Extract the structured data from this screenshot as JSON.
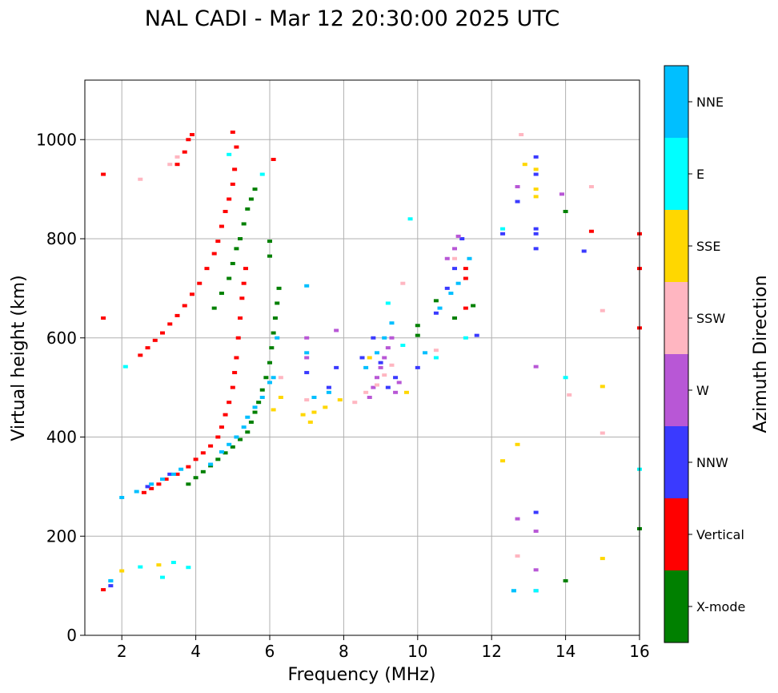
{
  "chart_data": {
    "type": "scatter",
    "title": "NAL CADI - Mar 12 20:30:00 2025 UTC",
    "xlabel": "Frequency (MHz)",
    "ylabel": "Virtual height (km)",
    "xlim": [
      1,
      16
    ],
    "ylim": [
      0,
      1120
    ],
    "xticks": [
      2,
      4,
      6,
      8,
      10,
      12,
      14,
      16
    ],
    "yticks": [
      0,
      200,
      400,
      600,
      800,
      1000
    ],
    "grid": true,
    "colorbar": {
      "label": "Azimuth Direction",
      "categories": [
        {
          "name": "X-mode",
          "color": "#008000"
        },
        {
          "name": "Vertical",
          "color": "#ff0000"
        },
        {
          "name": "NNW",
          "color": "#3a3aff"
        },
        {
          "name": "W",
          "color": "#b857d6"
        },
        {
          "name": "SSW",
          "color": "#ffb6c1"
        },
        {
          "name": "SSE",
          "color": "#ffd700"
        },
        {
          "name": "E",
          "color": "#00ffff"
        },
        {
          "name": "NNE",
          "color": "#00bfff"
        }
      ]
    },
    "series": [
      {
        "name": "Vertical",
        "color": "#ff0000",
        "points": [
          [
            1.5,
            92
          ],
          [
            2.6,
            288
          ],
          [
            2.8,
            296
          ],
          [
            3.0,
            305
          ],
          [
            3.2,
            315
          ],
          [
            3.5,
            325
          ],
          [
            3.8,
            340
          ],
          [
            4.0,
            355
          ],
          [
            4.2,
            368
          ],
          [
            4.4,
            382
          ],
          [
            4.6,
            400
          ],
          [
            4.7,
            420
          ],
          [
            4.8,
            445
          ],
          [
            4.9,
            470
          ],
          [
            5.0,
            500
          ],
          [
            5.05,
            530
          ],
          [
            5.1,
            560
          ],
          [
            5.15,
            600
          ],
          [
            5.2,
            640
          ],
          [
            5.25,
            680
          ],
          [
            5.3,
            710
          ],
          [
            5.35,
            740
          ],
          [
            2.5,
            565
          ],
          [
            2.7,
            580
          ],
          [
            2.9,
            595
          ],
          [
            3.1,
            610
          ],
          [
            3.3,
            628
          ],
          [
            3.5,
            645
          ],
          [
            3.7,
            665
          ],
          [
            3.9,
            688
          ],
          [
            4.1,
            710
          ],
          [
            4.3,
            740
          ],
          [
            4.5,
            770
          ],
          [
            4.6,
            795
          ],
          [
            4.7,
            825
          ],
          [
            4.8,
            855
          ],
          [
            4.9,
            880
          ],
          [
            5.0,
            910
          ],
          [
            5.05,
            940
          ],
          [
            5.1,
            985
          ],
          [
            3.5,
            950
          ],
          [
            3.7,
            975
          ],
          [
            3.8,
            1000
          ],
          [
            3.9,
            1010
          ],
          [
            1.5,
            640
          ],
          [
            1.5,
            930
          ],
          [
            11.3,
            660
          ],
          [
            11.3,
            720
          ],
          [
            11.3,
            740
          ],
          [
            14.7,
            815
          ],
          [
            16,
            740
          ],
          [
            16,
            620
          ],
          [
            16,
            810
          ],
          [
            6.1,
            960
          ],
          [
            5.0,
            1015
          ]
        ]
      },
      {
        "name": "X-mode",
        "color": "#008000",
        "points": [
          [
            3.8,
            305
          ],
          [
            4.0,
            318
          ],
          [
            4.2,
            330
          ],
          [
            4.4,
            342
          ],
          [
            4.6,
            355
          ],
          [
            4.8,
            368
          ],
          [
            5.0,
            380
          ],
          [
            5.2,
            395
          ],
          [
            5.4,
            410
          ],
          [
            5.5,
            430
          ],
          [
            5.6,
            450
          ],
          [
            5.7,
            470
          ],
          [
            5.8,
            495
          ],
          [
            5.9,
            520
          ],
          [
            6.0,
            550
          ],
          [
            6.05,
            580
          ],
          [
            6.1,
            610
          ],
          [
            6.15,
            640
          ],
          [
            6.2,
            670
          ],
          [
            6.25,
            700
          ],
          [
            4.5,
            660
          ],
          [
            4.7,
            690
          ],
          [
            4.9,
            720
          ],
          [
            5.0,
            750
          ],
          [
            5.1,
            780
          ],
          [
            5.2,
            800
          ],
          [
            5.3,
            830
          ],
          [
            5.4,
            860
          ],
          [
            5.5,
            880
          ],
          [
            5.6,
            900
          ],
          [
            6.0,
            795
          ],
          [
            6.0,
            765
          ],
          [
            10.0,
            605
          ],
          [
            10.0,
            625
          ],
          [
            10.5,
            675
          ],
          [
            11.0,
            640
          ],
          [
            11.5,
            665
          ],
          [
            14.0,
            110
          ],
          [
            14.0,
            855
          ],
          [
            16,
            215
          ]
        ]
      },
      {
        "name": "NNW",
        "color": "#3a3aff",
        "points": [
          [
            1.7,
            100
          ],
          [
            2.7,
            300
          ],
          [
            3.3,
            325
          ],
          [
            7.0,
            530
          ],
          [
            7.6,
            500
          ],
          [
            7.8,
            540
          ],
          [
            8.5,
            560
          ],
          [
            8.8,
            600
          ],
          [
            9.0,
            550
          ],
          [
            9.2,
            500
          ],
          [
            9.4,
            520
          ],
          [
            10.0,
            540
          ],
          [
            10.5,
            650
          ],
          [
            10.8,
            700
          ],
          [
            11.0,
            740
          ],
          [
            11.2,
            800
          ],
          [
            11.6,
            605
          ],
          [
            12.3,
            810
          ],
          [
            12.7,
            875
          ],
          [
            13.2,
            780
          ],
          [
            13.2,
            810
          ],
          [
            13.2,
            820
          ],
          [
            13.2,
            930
          ],
          [
            13.2,
            965
          ],
          [
            13.2,
            248
          ],
          [
            13.2,
            90
          ],
          [
            14.5,
            775
          ]
        ]
      },
      {
        "name": "W",
        "color": "#b857d6",
        "points": [
          [
            7.0,
            600
          ],
          [
            7.0,
            560
          ],
          [
            7.8,
            615
          ],
          [
            8.7,
            480
          ],
          [
            8.8,
            500
          ],
          [
            8.9,
            520
          ],
          [
            9.0,
            540
          ],
          [
            9.1,
            560
          ],
          [
            9.2,
            580
          ],
          [
            9.3,
            600
          ],
          [
            9.4,
            490
          ],
          [
            9.5,
            510
          ],
          [
            10.8,
            760
          ],
          [
            11.0,
            780
          ],
          [
            11.1,
            805
          ],
          [
            12.7,
            905
          ],
          [
            13.2,
            542
          ],
          [
            13.2,
            210
          ],
          [
            13.2,
            132
          ],
          [
            13.9,
            890
          ],
          [
            12.7,
            235
          ]
        ]
      },
      {
        "name": "SSW",
        "color": "#ffb6c1",
        "points": [
          [
            3.3,
            950
          ],
          [
            3.5,
            965
          ],
          [
            2.5,
            920
          ],
          [
            6.3,
            520
          ],
          [
            7.0,
            475
          ],
          [
            8.3,
            470
          ],
          [
            8.6,
            490
          ],
          [
            8.9,
            505
          ],
          [
            9.1,
            525
          ],
          [
            9.3,
            545
          ],
          [
            9.6,
            710
          ],
          [
            10.5,
            575
          ],
          [
            11.0,
            760
          ],
          [
            12.8,
            1010
          ],
          [
            12.7,
            160
          ],
          [
            14.1,
            485
          ],
          [
            14.7,
            905
          ],
          [
            15.0,
            655
          ],
          [
            15.0,
            408
          ]
        ]
      },
      {
        "name": "SSE",
        "color": "#ffd700",
        "points": [
          [
            2.0,
            130
          ],
          [
            3.0,
            142
          ],
          [
            6.1,
            455
          ],
          [
            6.3,
            480
          ],
          [
            6.9,
            445
          ],
          [
            7.1,
            430
          ],
          [
            7.2,
            450
          ],
          [
            7.5,
            460
          ],
          [
            7.9,
            475
          ],
          [
            9.7,
            490
          ],
          [
            8.7,
            560
          ],
          [
            12.3,
            352
          ],
          [
            12.7,
            385
          ],
          [
            12.9,
            950
          ],
          [
            13.2,
            940
          ],
          [
            13.2,
            900
          ],
          [
            13.2,
            885
          ],
          [
            15.0,
            502
          ],
          [
            15.0,
            155
          ]
        ]
      },
      {
        "name": "E",
        "color": "#00ffff",
        "points": [
          [
            1.7,
            110
          ],
          [
            2.5,
            138
          ],
          [
            3.1,
            117
          ],
          [
            3.4,
            147
          ],
          [
            3.8,
            137
          ],
          [
            2.1,
            542
          ],
          [
            4.9,
            970
          ],
          [
            5.8,
            930
          ],
          [
            9.8,
            840
          ],
          [
            9.2,
            670
          ],
          [
            9.6,
            585
          ],
          [
            10.5,
            560
          ],
          [
            11.3,
            600
          ],
          [
            12.3,
            820
          ],
          [
            12.6,
            90
          ],
          [
            13.2,
            90
          ],
          [
            14.0,
            520
          ],
          [
            16,
            335
          ]
        ]
      },
      {
        "name": "NNE",
        "color": "#00bfff",
        "points": [
          [
            2.0,
            278
          ],
          [
            2.4,
            290
          ],
          [
            2.8,
            305
          ],
          [
            3.1,
            315
          ],
          [
            3.4,
            325
          ],
          [
            3.6,
            335
          ],
          [
            4.4,
            345
          ],
          [
            4.7,
            370
          ],
          [
            4.9,
            385
          ],
          [
            5.1,
            400
          ],
          [
            5.3,
            420
          ],
          [
            5.4,
            440
          ],
          [
            5.6,
            460
          ],
          [
            5.8,
            480
          ],
          [
            6.0,
            510
          ],
          [
            6.1,
            520
          ],
          [
            6.2,
            600
          ],
          [
            7.0,
            705
          ],
          [
            7.0,
            570
          ],
          [
            7.2,
            480
          ],
          [
            7.6,
            490
          ],
          [
            8.6,
            540
          ],
          [
            8.9,
            570
          ],
          [
            9.1,
            600
          ],
          [
            9.3,
            630
          ],
          [
            10.2,
            570
          ],
          [
            10.6,
            660
          ],
          [
            10.9,
            690
          ],
          [
            11.1,
            710
          ],
          [
            11.4,
            760
          ],
          [
            12.6,
            90
          ],
          [
            1.7,
            110
          ]
        ]
      }
    ]
  }
}
